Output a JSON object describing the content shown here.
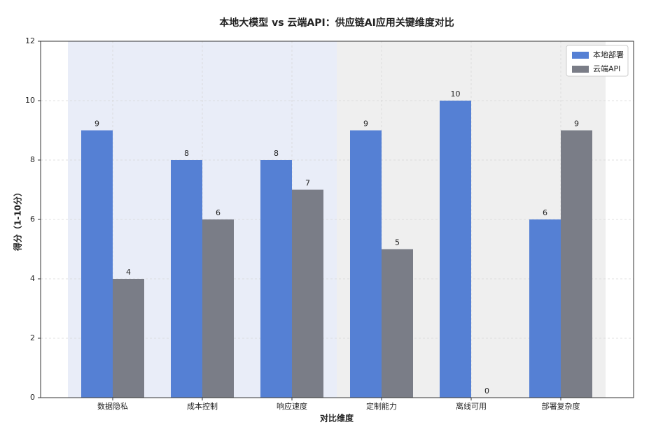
{
  "chart_data": {
    "type": "bar",
    "title": "本地大模型 vs 云端API：供应链AI应用关键维度对比",
    "x_label": "对比维度",
    "y_label": "得分（1-10分）",
    "categories": [
      "数据隐私",
      "成本控制",
      "响应速度",
      "定制能力",
      "离线可用",
      "部署复杂度"
    ],
    "series": [
      {
        "name": "本地部署",
        "color": "#5580d4",
        "values": [
          9,
          8,
          8,
          9,
          10,
          6
        ]
      },
      {
        "name": "云端API",
        "color": "#7a7d87",
        "values": [
          4,
          6,
          7,
          5,
          0,
          9
        ]
      }
    ],
    "ylim": [
      0,
      12
    ],
    "yticks": [
      0,
      2,
      4,
      6,
      8,
      10,
      12
    ],
    "grid": true,
    "legend": "upper right"
  }
}
